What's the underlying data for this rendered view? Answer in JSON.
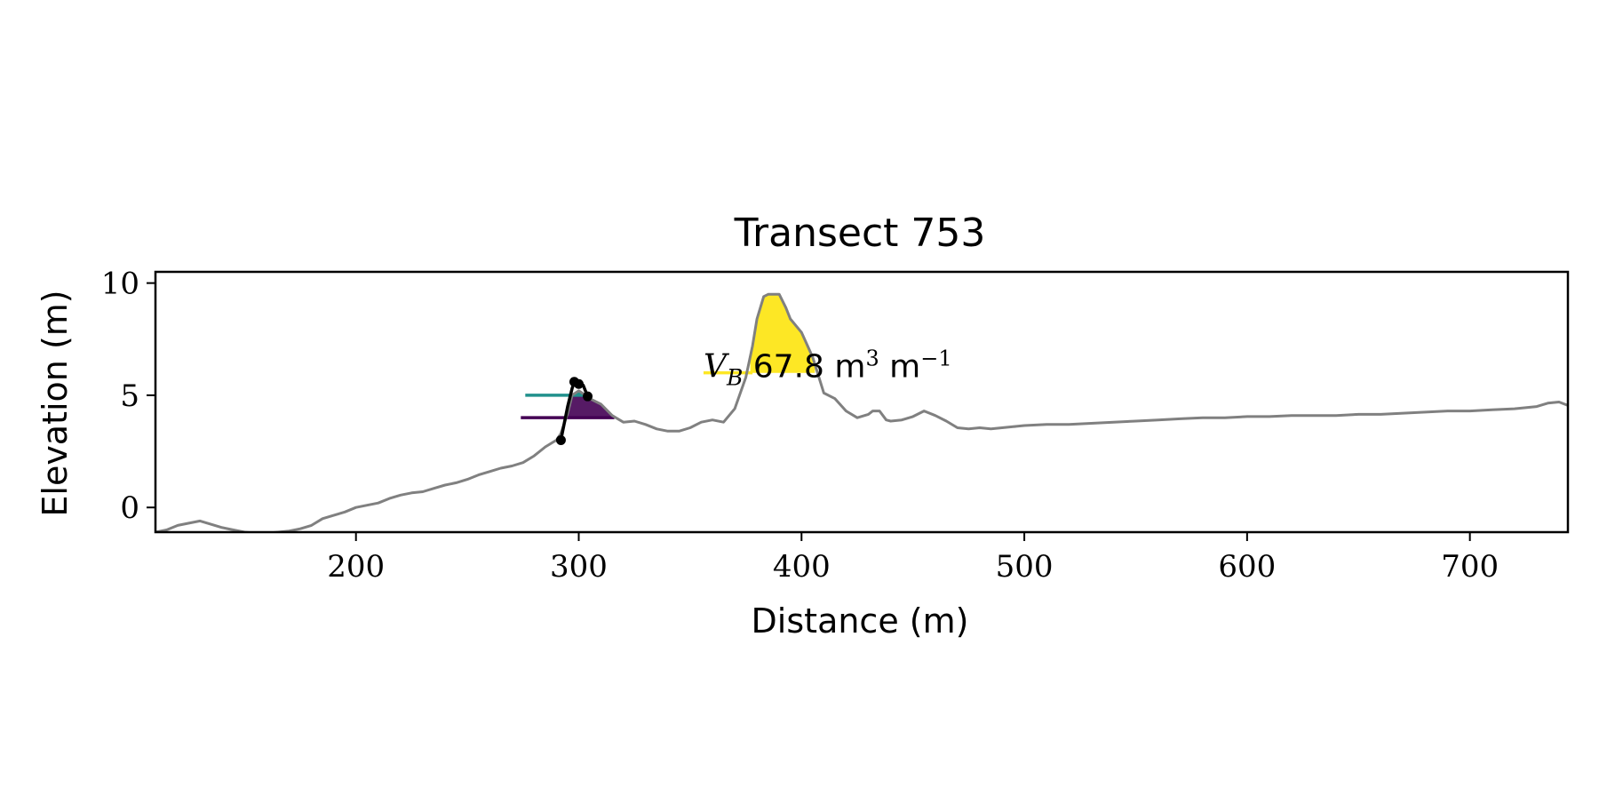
{
  "chart_data": {
    "type": "line",
    "title": "Transect 753",
    "xlabel": "Distance (m)",
    "ylabel": "Elevation (m)",
    "xlim": [
      110,
      744
    ],
    "ylim": [
      -1.1,
      10.5
    ],
    "xticks": [
      200,
      300,
      400,
      500,
      600,
      700
    ],
    "yticks": [
      0,
      5,
      10
    ],
    "grid": false,
    "legend": "none",
    "colors": {
      "profile": "#808080",
      "highlight_yellow": "#fde725",
      "highlight_teal": "#21918c",
      "highlight_purple": "#440154",
      "markers": "#000000"
    },
    "profile": {
      "x": [
        110,
        115,
        120,
        125,
        130,
        135,
        140,
        145,
        150,
        155,
        160,
        165,
        170,
        175,
        180,
        185,
        190,
        195,
        200,
        205,
        210,
        215,
        220,
        225,
        230,
        235,
        240,
        245,
        250,
        255,
        260,
        265,
        270,
        275,
        280,
        285,
        290,
        292,
        295,
        297,
        300,
        303,
        305,
        310,
        315,
        320,
        325,
        330,
        335,
        340,
        345,
        350,
        355,
        360,
        365,
        370,
        375,
        378,
        380,
        383,
        385,
        390,
        393,
        395,
        400,
        405,
        410,
        415,
        420,
        425,
        430,
        432,
        435,
        438,
        440,
        445,
        450,
        455,
        460,
        465,
        470,
        475,
        480,
        485,
        490,
        495,
        500,
        510,
        520,
        530,
        540,
        550,
        560,
        570,
        580,
        590,
        600,
        610,
        620,
        630,
        640,
        650,
        660,
        670,
        680,
        690,
        700,
        710,
        720,
        730,
        735,
        740,
        744
      ],
      "y": [
        -1.1,
        -1.0,
        -0.8,
        -0.7,
        -0.6,
        -0.75,
        -0.9,
        -1.0,
        -1.1,
        -1.15,
        -1.15,
        -1.1,
        -1.05,
        -0.95,
        -0.8,
        -0.5,
        -0.35,
        -0.2,
        0.0,
        0.1,
        0.2,
        0.4,
        0.55,
        0.65,
        0.7,
        0.85,
        1.0,
        1.1,
        1.25,
        1.45,
        1.6,
        1.75,
        1.85,
        2.0,
        2.3,
        2.7,
        3.0,
        3.3,
        4.2,
        5.0,
        5.2,
        5.0,
        4.85,
        4.6,
        4.1,
        3.8,
        3.85,
        3.7,
        3.5,
        3.4,
        3.4,
        3.55,
        3.8,
        3.9,
        3.8,
        4.4,
        5.8,
        7.2,
        8.4,
        9.4,
        9.5,
        9.5,
        8.9,
        8.4,
        7.8,
        6.7,
        5.1,
        4.85,
        4.3,
        4.0,
        4.15,
        4.3,
        4.3,
        3.9,
        3.85,
        3.9,
        4.05,
        4.3,
        4.1,
        3.85,
        3.55,
        3.5,
        3.55,
        3.5,
        3.55,
        3.6,
        3.65,
        3.7,
        3.7,
        3.75,
        3.8,
        3.85,
        3.9,
        3.95,
        4.0,
        4.0,
        4.05,
        4.05,
        4.1,
        4.1,
        4.1,
        4.15,
        4.15,
        4.2,
        4.25,
        4.3,
        4.3,
        4.35,
        4.4,
        4.5,
        4.65,
        4.7,
        4.55
      ]
    },
    "filled_regions": [
      {
        "color": "yellow",
        "base": 6.0,
        "x_start": 377,
        "x_end": 406
      },
      {
        "color": "purple",
        "base": 4.0,
        "x_start": 294,
        "x_end": 315
      },
      {
        "color": "teal",
        "base": 5.0,
        "x_start": 297,
        "x_end": 303
      }
    ],
    "level_lines": [
      {
        "color": "yellow",
        "y": 6.0,
        "x_start": 356,
        "x_end": 378
      },
      {
        "color": "teal",
        "y": 5.0,
        "x_start": 276,
        "x_end": 302
      },
      {
        "color": "purple",
        "y": 4.0,
        "x_start": 274,
        "x_end": 316
      }
    ],
    "marker_line": {
      "x": [
        292,
        295,
        297,
        298,
        300,
        302,
        304
      ],
      "y": [
        3.0,
        4.5,
        5.3,
        5.6,
        5.5,
        5.45,
        4.95
      ],
      "points_x": [
        292,
        298,
        300,
        304
      ],
      "points_y": [
        3.0,
        5.6,
        5.5,
        4.95
      ]
    },
    "annotation": {
      "symbol": "V",
      "subscript": "B",
      "text": "67.8 m",
      "sup1": "3",
      "text2": " m",
      "sup2": "−1",
      "x": 356,
      "y": 6.2
    }
  }
}
